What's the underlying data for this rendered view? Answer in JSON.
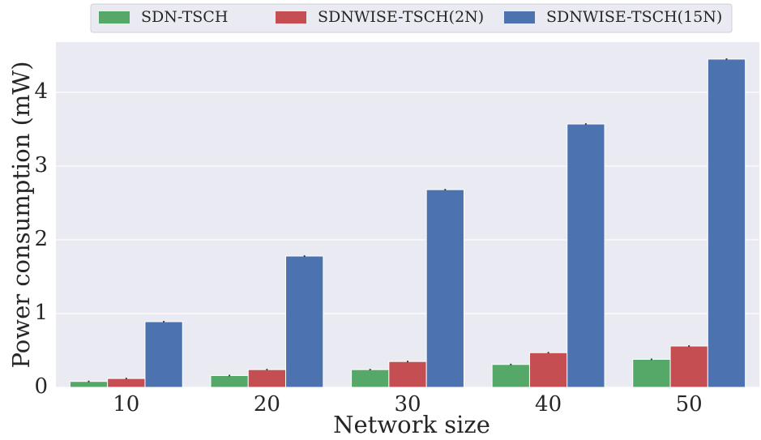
{
  "chart_data": {
    "type": "bar",
    "xlabel": "Network size",
    "ylabel": "Power consumption (mW)",
    "categories": [
      "10",
      "20",
      "30",
      "40",
      "50"
    ],
    "series": [
      {
        "name": "SDN-TSCH",
        "color": "#55a868",
        "values": [
          0.08,
          0.16,
          0.24,
          0.31,
          0.38
        ],
        "errors": [
          0.01,
          0.01,
          0.01,
          0.01,
          0.01
        ]
      },
      {
        "name": "SDNWISE-TSCH(2N)",
        "color": "#c44e52",
        "values": [
          0.12,
          0.24,
          0.35,
          0.47,
          0.56
        ],
        "errors": [
          0.01,
          0.01,
          0.01,
          0.01,
          0.01
        ]
      },
      {
        "name": "SDNWISE-TSCH(15N)",
        "color": "#4c72b0",
        "values": [
          0.89,
          1.78,
          2.68,
          3.57,
          4.45
        ],
        "errors": [
          0.01,
          0.01,
          0.01,
          0.01,
          0.01
        ]
      }
    ],
    "ylim": [
      0,
      4.68
    ],
    "yticks": [
      0,
      1,
      2,
      3,
      4
    ],
    "grid": true,
    "legend": "top"
  }
}
